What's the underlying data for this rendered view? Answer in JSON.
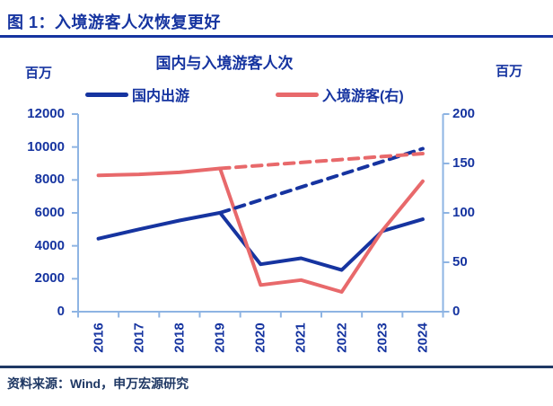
{
  "header": {
    "title": "图 1：入境游客人次恢复更好"
  },
  "footer": {
    "source": "资料来源：Wind，申万宏源研究"
  },
  "colors": {
    "accent_blue": "#1634A0",
    "accent_red": "#E8696B",
    "axis_light_blue": "#8EB4E3",
    "footer_navy": "#1F3864"
  },
  "chart_data": {
    "type": "line",
    "title": "国内与入境游客人次",
    "grid": false,
    "legend_position": "top",
    "categories": [
      "2016",
      "2017",
      "2018",
      "2019",
      "2020",
      "2021",
      "2022",
      "2023",
      "2024"
    ],
    "left_axis": {
      "unit": "百万",
      "min": 0,
      "max": 12000,
      "ticks": [
        0,
        2000,
        4000,
        6000,
        8000,
        10000,
        12000
      ]
    },
    "right_axis": {
      "unit": "百万",
      "min": 0,
      "max": 200,
      "ticks": [
        0,
        50,
        100,
        150,
        200
      ]
    },
    "legend": [
      {
        "label": "国内出游",
        "color": "#1634A0",
        "style": "solid"
      },
      {
        "label": "入境游客(右)",
        "color": "#E8696B",
        "style": "solid"
      }
    ],
    "series": [
      {
        "key": "domestic-trips",
        "name": "国内出游",
        "axis": "left",
        "style": "solid",
        "color": "#1634A0",
        "values": [
          4435,
          5001,
          5539,
          6006,
          2879,
          3246,
          2530,
          4891,
          5615
        ]
      },
      {
        "key": "inbound-visitors",
        "name": "入境游客(右)",
        "axis": "right",
        "style": "solid",
        "color": "#E8696B",
        "values": [
          138,
          139,
          141,
          145,
          27,
          32,
          20,
          82,
          132
        ]
      },
      {
        "key": "domestic-trend-dashed",
        "name": "国内出游趋势(虚线)",
        "axis": "left",
        "style": "dashed",
        "color": "#1634A0",
        "values": [
          null,
          null,
          null,
          6006,
          6785,
          7564,
          8342,
          9121,
          9900
        ]
      },
      {
        "key": "inbound-trend-dashed",
        "name": "入境游客趋势(虚线)",
        "axis": "right",
        "style": "dashed",
        "color": "#E8696B",
        "values": [
          null,
          null,
          null,
          145,
          148,
          151,
          154,
          157,
          160
        ]
      }
    ]
  }
}
